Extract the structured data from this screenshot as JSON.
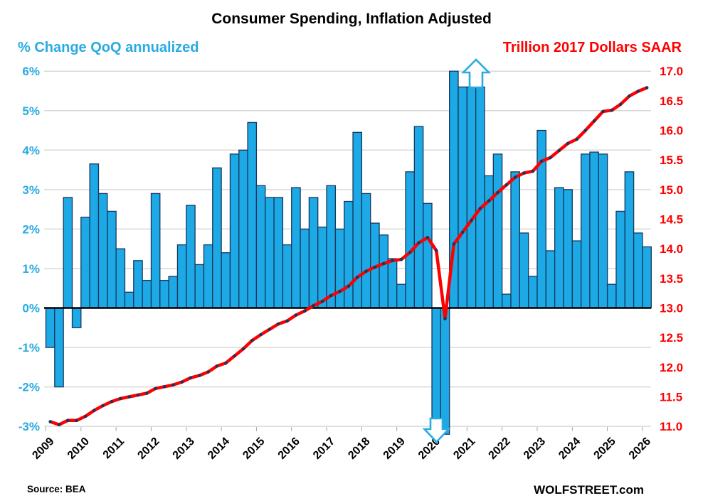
{
  "title": "Consumer Spending, Inflation Adjusted",
  "left_axis_title": "% Change QoQ annualized",
  "right_axis_title": "Trillion 2017 Dollars SAAR",
  "footer": {
    "source": "Source: BEA",
    "brand": "WOLFSTREET.com"
  },
  "colors": {
    "bar_fill": "#1CA9E5",
    "bar_border": "#17375E",
    "line_red": "#FF0000",
    "marker_navy": "#17375E",
    "cyan_text": "#29ABE2",
    "red_text": "#FF0000",
    "grid": "#D9D9D9",
    "zero_line": "#000000",
    "arrow_fill": "#FFFFFF",
    "arrow_stroke": "#29ABE2"
  },
  "chart_data": {
    "type": "bar+line",
    "title": "Consumer Spending, Inflation Adjusted",
    "legend": "none",
    "grid": "horizontal-only",
    "quarters": [
      "2009Q1",
      "2009Q2",
      "2009Q3",
      "2009Q4",
      "2010Q1",
      "2010Q2",
      "2010Q3",
      "2010Q4",
      "2011Q1",
      "2011Q2",
      "2011Q3",
      "2011Q4",
      "2012Q1",
      "2012Q2",
      "2012Q3",
      "2012Q4",
      "2013Q1",
      "2013Q2",
      "2013Q3",
      "2013Q4",
      "2014Q1",
      "2014Q2",
      "2014Q3",
      "2014Q4",
      "2015Q1",
      "2015Q2",
      "2015Q3",
      "2015Q4",
      "2016Q1",
      "2016Q2",
      "2016Q3",
      "2016Q4",
      "2017Q1",
      "2017Q2",
      "2017Q3",
      "2017Q4",
      "2018Q1",
      "2018Q2",
      "2018Q3",
      "2018Q4",
      "2019Q1",
      "2019Q2",
      "2019Q3",
      "2019Q4",
      "2020Q1",
      "2020Q2",
      "2020Q3",
      "2020Q4",
      "2021Q1",
      "2021Q2",
      "2021Q3",
      "2021Q4",
      "2022Q1",
      "2022Q2",
      "2022Q3",
      "2022Q4",
      "2023Q1",
      "2023Q2",
      "2023Q3",
      "2023Q4",
      "2024Q1",
      "2024Q2",
      "2024Q3",
      "2024Q4",
      "2025Q1",
      "2025Q2",
      "2025Q3",
      "2025Q4",
      "2026Q1"
    ],
    "bar_series": {
      "name": "% Change QoQ annualized",
      "axis": "left",
      "values_pct_plotted": [
        -1.0,
        -2.0,
        2.8,
        -0.5,
        2.3,
        3.65,
        2.9,
        2.45,
        1.5,
        0.4,
        1.2,
        0.7,
        2.9,
        0.7,
        0.8,
        1.6,
        2.6,
        1.1,
        1.6,
        3.55,
        1.4,
        3.9,
        4.0,
        4.7,
        3.1,
        2.8,
        2.8,
        1.6,
        3.05,
        2.0,
        2.8,
        2.05,
        3.1,
        2.0,
        2.7,
        4.45,
        2.9,
        2.15,
        1.85,
        1.25,
        0.6,
        3.45,
        4.6,
        2.65,
        -3.2,
        -3.2,
        6.0,
        5.6,
        5.6,
        5.6,
        3.35,
        3.9,
        0.35,
        3.45,
        1.9,
        0.8,
        4.5,
        1.45,
        3.05,
        3.0,
        1.7,
        3.9,
        3.95,
        3.9,
        0.6,
        2.45,
        3.45,
        1.9,
        1.55
      ],
      "clipped_below_axis_indices": [
        44,
        45
      ],
      "clipped_above_axis_indices": [
        46
      ]
    },
    "line_series": {
      "name": "Trillion 2017 Dollars SAAR",
      "axis": "right",
      "values_trillions": [
        11.08,
        11.03,
        11.1,
        11.1,
        11.17,
        11.27,
        11.35,
        11.42,
        11.47,
        11.5,
        11.53,
        11.56,
        11.64,
        11.67,
        11.7,
        11.75,
        11.82,
        11.86,
        11.92,
        12.02,
        12.07,
        12.19,
        12.31,
        12.45,
        12.55,
        12.64,
        12.73,
        12.78,
        12.88,
        12.95,
        13.04,
        13.11,
        13.21,
        13.28,
        13.37,
        13.52,
        13.62,
        13.69,
        13.75,
        13.8,
        13.82,
        13.94,
        14.1,
        14.19,
        13.97,
        12.82,
        14.08,
        14.28,
        14.48,
        14.68,
        14.81,
        14.95,
        15.08,
        15.21,
        15.28,
        15.31,
        15.48,
        15.54,
        15.66,
        15.78,
        15.85,
        16.0,
        16.16,
        16.32,
        16.34,
        16.44,
        16.58,
        16.66,
        16.72
      ]
    },
    "left_axis": {
      "min": -3,
      "max": 6,
      "tick_labels": [
        "6%",
        "5%",
        "4%",
        "3%",
        "2%",
        "1%",
        "0%",
        "-1%",
        "-2%",
        "-3%"
      ]
    },
    "right_axis": {
      "min": 11.0,
      "max": 17.0,
      "tick_labels": [
        "17.0",
        "16.5",
        "16.0",
        "15.5",
        "15.0",
        "14.5",
        "14.0",
        "13.5",
        "13.0",
        "12.5",
        "12.0",
        "11.5",
        "11.0"
      ]
    },
    "x_axis": {
      "year_labels": [
        "2009",
        "2010",
        "2011",
        "2012",
        "2013",
        "2014",
        "2015",
        "2016",
        "2017",
        "2018",
        "2019",
        "2020",
        "2021",
        "2022",
        "2023",
        "2024",
        "2025",
        "2026"
      ]
    },
    "annotations": {
      "up_arrow_over_quarters": [
        "2021Q1",
        "2021Q2"
      ],
      "down_arrow_over_quarters": [
        "2020Q1",
        "2020Q2"
      ]
    }
  }
}
